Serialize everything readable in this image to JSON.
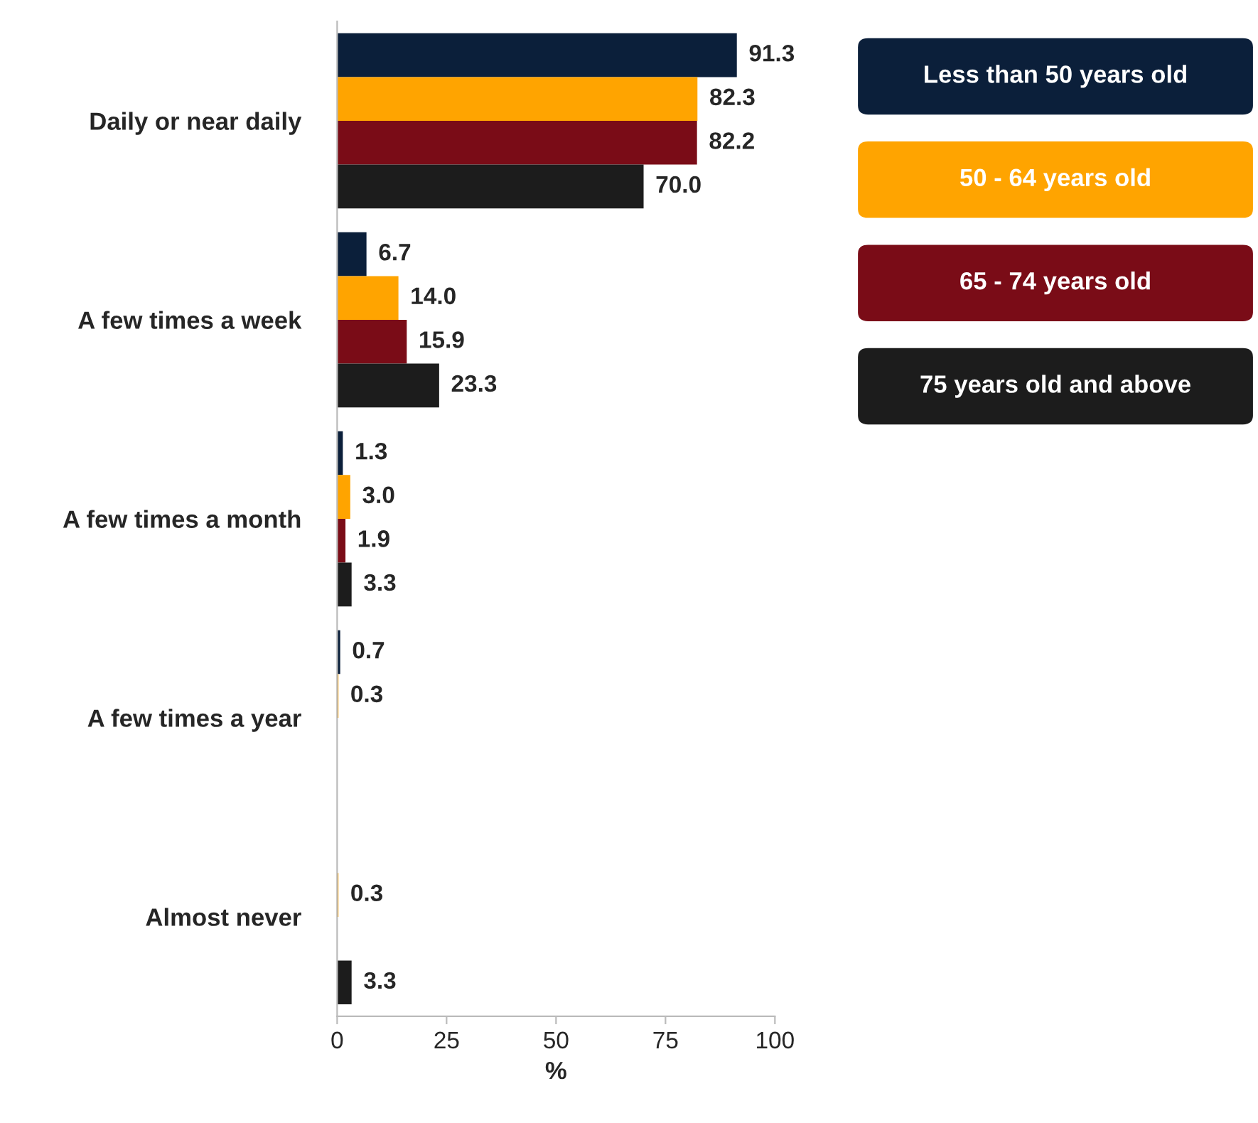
{
  "chart_data": {
    "type": "bar",
    "orientation": "horizontal",
    "xlabel": "%",
    "categories": [
      "Daily or near daily",
      "A few times a week",
      "A few times a month",
      "A few times a year",
      "Almost never"
    ],
    "series": [
      {
        "name": "Less than 50 years old",
        "color": "#0b1f3a",
        "values": [
          91.3,
          6.7,
          1.3,
          0.7,
          null
        ],
        "value_labels": [
          "91.3",
          "6.7",
          "1.3",
          "0.7",
          null
        ]
      },
      {
        "name": "50 - 64 years old",
        "color": "#ffa400",
        "values": [
          82.3,
          14.0,
          3.0,
          0.3,
          0.3
        ],
        "value_labels": [
          "82.3",
          "14.0",
          "3.0",
          "0.3",
          "0.3"
        ]
      },
      {
        "name": "65 - 74 years old",
        "color": "#7a0c17",
        "values": [
          82.2,
          15.9,
          1.9,
          null,
          null
        ],
        "value_labels": [
          "82.2",
          "15.9",
          "1.9",
          null,
          null
        ]
      },
      {
        "name": "75 years old and above",
        "color": "#1c1c1c",
        "values": [
          70.0,
          23.3,
          3.3,
          null,
          3.3
        ],
        "value_labels": [
          "70.0",
          "23.3",
          "3.3",
          null,
          "3.3"
        ]
      }
    ],
    "xlim": [
      0,
      100
    ],
    "xticks": [
      0,
      25,
      50,
      75,
      100
    ],
    "grid": false,
    "legend": "right"
  }
}
